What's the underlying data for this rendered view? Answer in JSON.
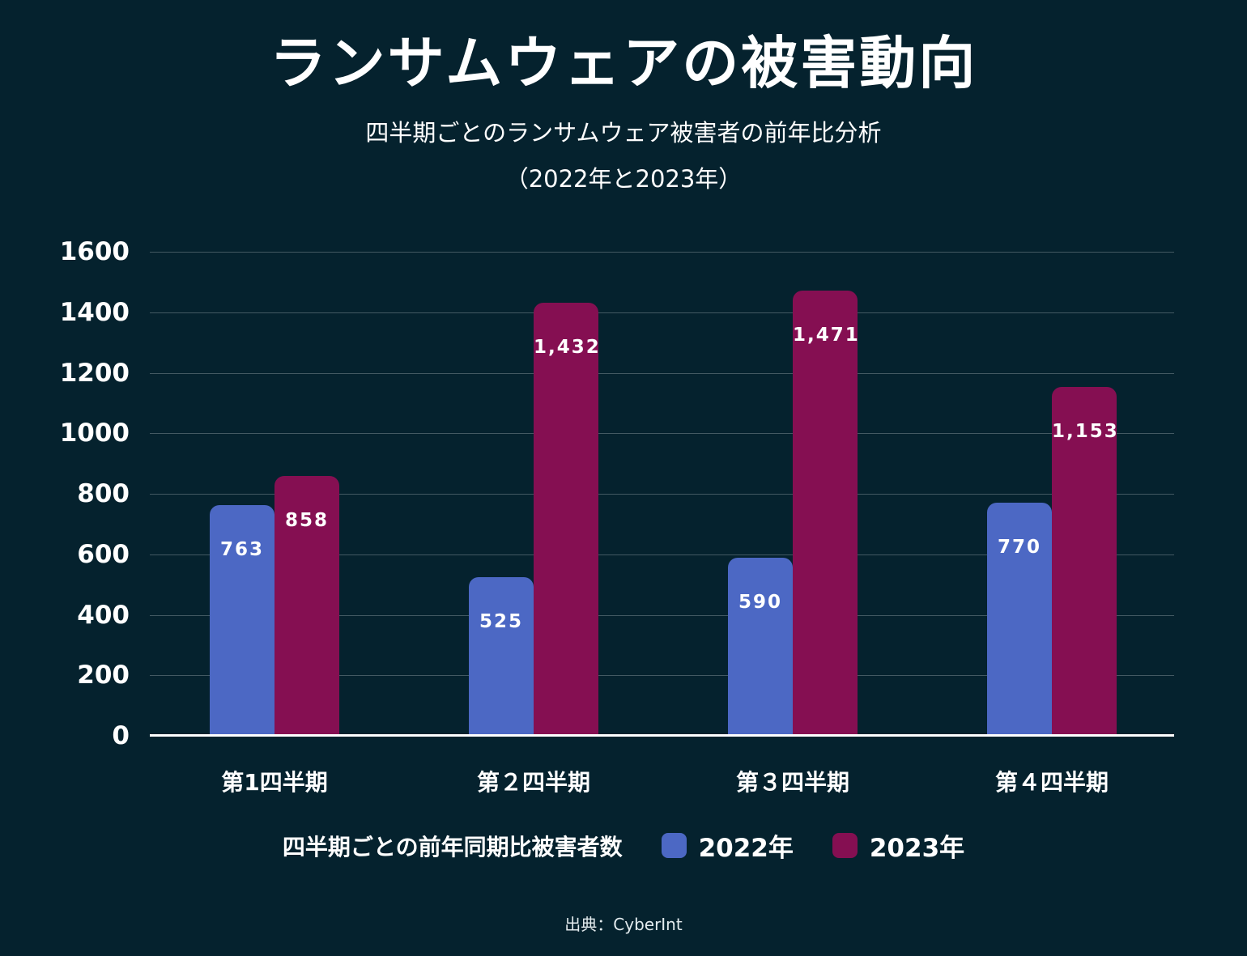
{
  "header": {
    "title": "ランサムウェアの被害動向",
    "subtitle_line1": "四半期ごとのランサムウェア被害者の前年比分析",
    "subtitle_line2": "（2022年と2023年）"
  },
  "chart_data": {
    "type": "bar",
    "title": "ランサムウェアの被害動向",
    "subtitle": "四半期ごとのランサムウェア被害者の前年比分析（2022年と2023年）",
    "categories": [
      "第1四半期",
      "第２四半期",
      "第３四半期",
      "第４四半期"
    ],
    "series": [
      {
        "name": "2022年",
        "color": "#4c68c4",
        "values": [
          763,
          525,
          590,
          770
        ]
      },
      {
        "name": "2023年",
        "color": "#850f52",
        "values": [
          858,
          1432,
          1471,
          1153
        ]
      }
    ],
    "xlabel": "",
    "ylabel": "",
    "ylim": [
      0,
      1600
    ],
    "ytick_step": 200,
    "grid": true,
    "legend_label": "四半期ごとの前年同期比被害者数",
    "legend_position": "bottom"
  },
  "colors": {
    "background": "#05222e",
    "bar_2022": "#4c68c4",
    "bar_2023": "#850f52",
    "gridline": "rgba(255,255,255,0.25)",
    "baseline": "#ffffff",
    "text": "#ffffff"
  },
  "footer": {
    "source": "出典：CyberInt"
  }
}
